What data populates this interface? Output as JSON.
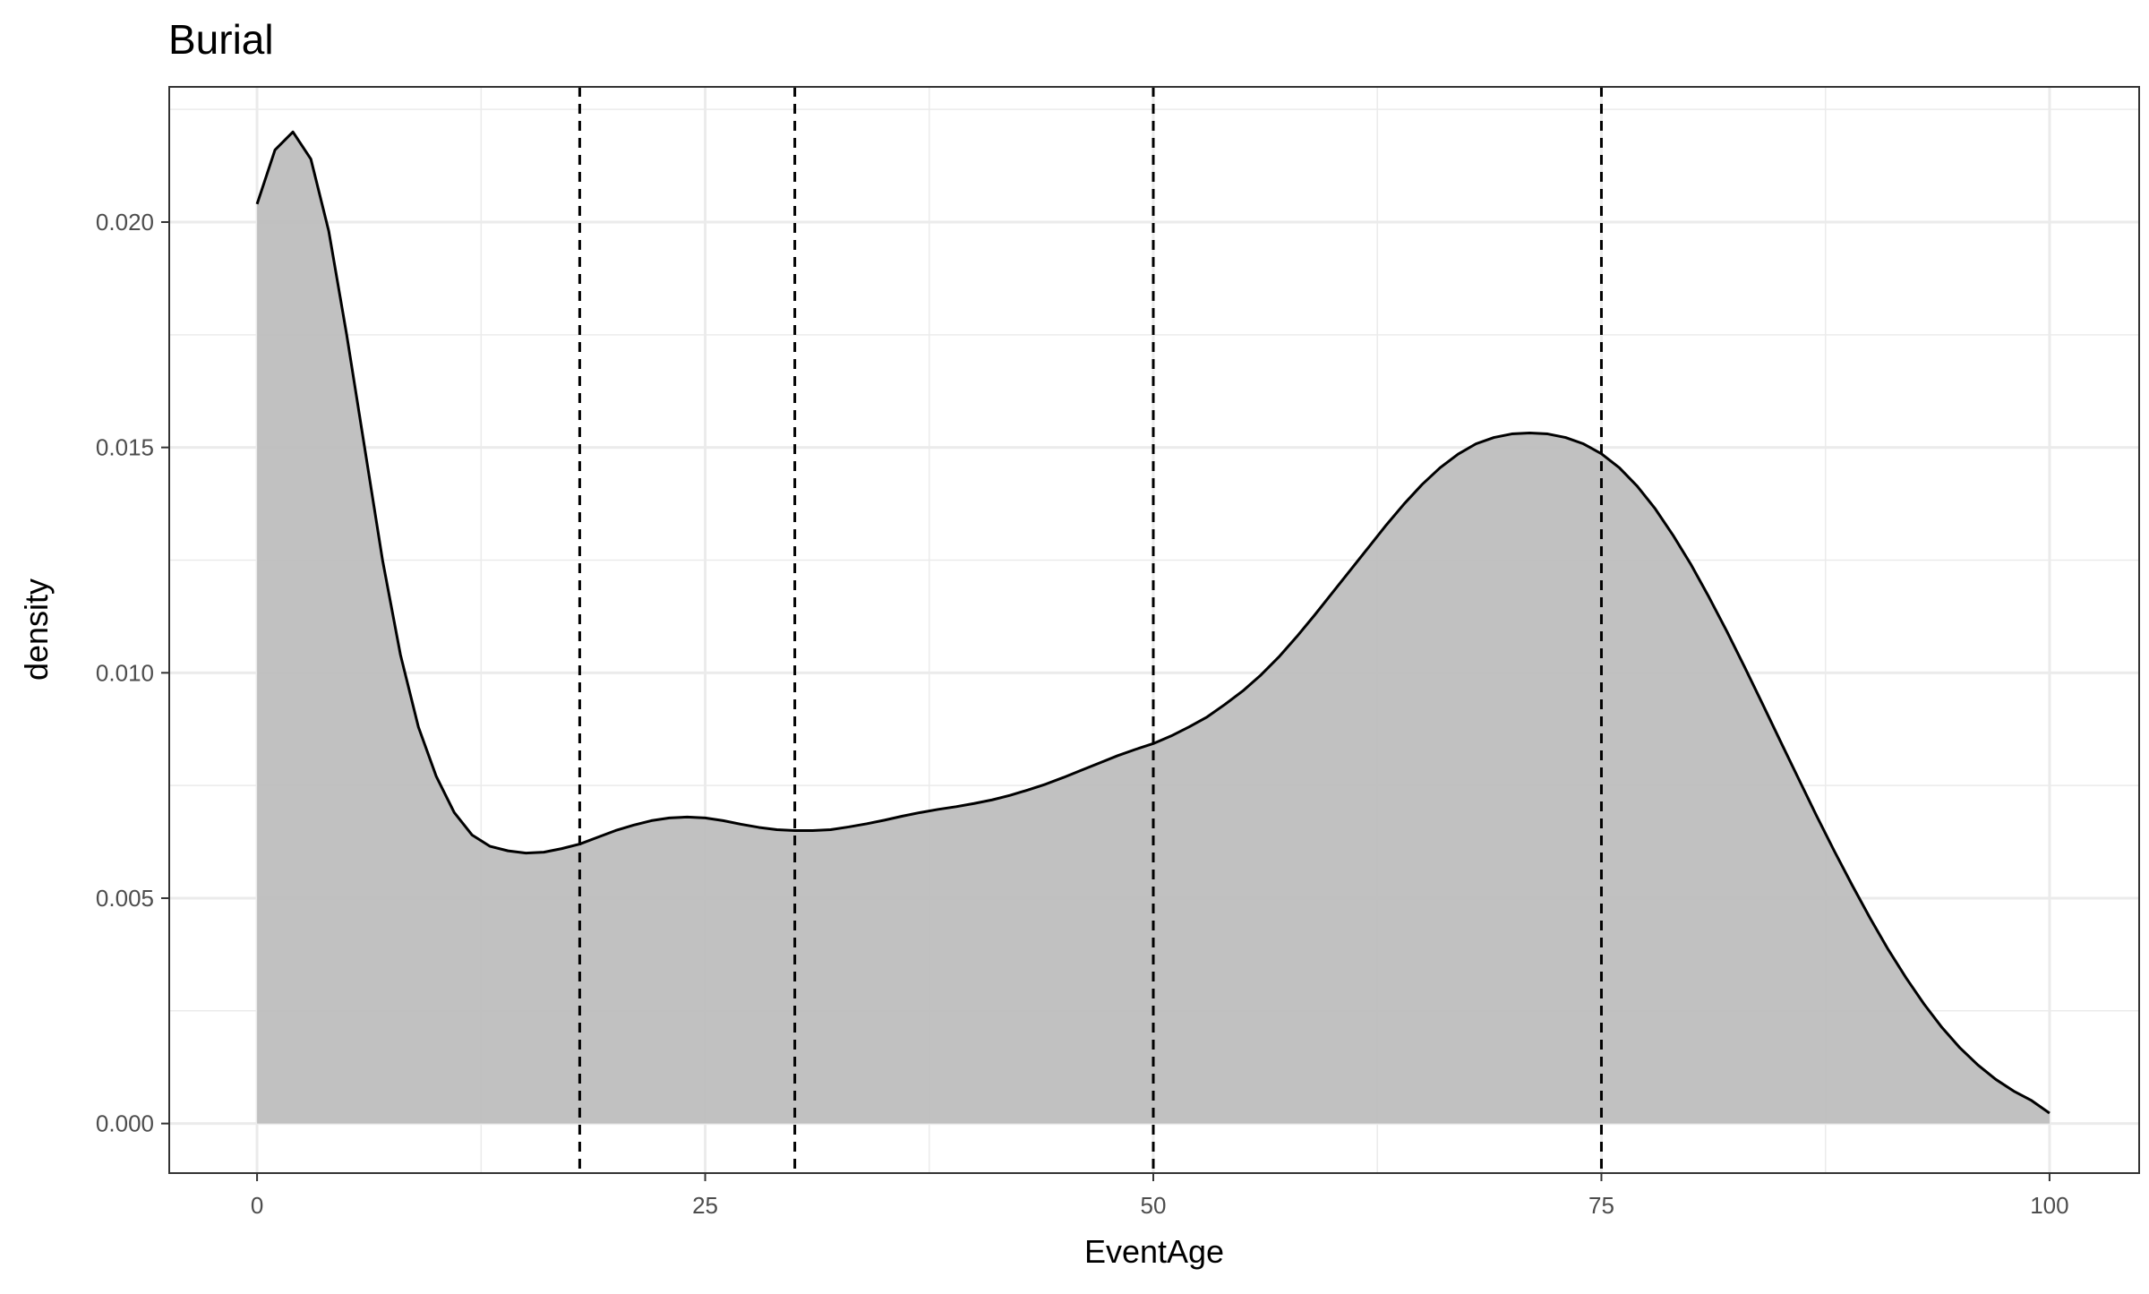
{
  "chart_data": {
    "type": "area",
    "title": "Burial",
    "xlabel": "EventAge",
    "ylabel": "density",
    "xlim": [
      -4.9,
      105
    ],
    "ylim": [
      -0.0011,
      0.023
    ],
    "x_ticks": [
      0,
      25,
      50,
      75,
      100
    ],
    "x_tick_labels": [
      "0",
      "25",
      "50",
      "75",
      "100"
    ],
    "y_ticks": [
      0.0,
      0.005,
      0.01,
      0.015,
      0.02
    ],
    "y_tick_labels": [
      "0.000",
      "0.005",
      "0.010",
      "0.015",
      "0.020"
    ],
    "x_minor_ticks": [
      12.5,
      37.5,
      62.5,
      87.5
    ],
    "y_minor_ticks": [
      0.0025,
      0.0075,
      0.0125,
      0.0175,
      0.0225
    ],
    "grid": true,
    "fill_color": "#bebebe",
    "line_color": "#000000",
    "series": [
      {
        "x": [
          0,
          1,
          2,
          3,
          4,
          5,
          6,
          7,
          8,
          9,
          10,
          11,
          12,
          13,
          14,
          15,
          16,
          17,
          18,
          19,
          20,
          21,
          22,
          23,
          24,
          25,
          26,
          27,
          28,
          29,
          30,
          31,
          32,
          33,
          34,
          35,
          36,
          37,
          38,
          39,
          40,
          41,
          42,
          43,
          44,
          45,
          46,
          47,
          48,
          49,
          50,
          51,
          52,
          53,
          54,
          55,
          56,
          57,
          58,
          59,
          60,
          61,
          62,
          63,
          64,
          65,
          66,
          67,
          68,
          69,
          70,
          71,
          72,
          73,
          74,
          75,
          76,
          77,
          78,
          79,
          80,
          81,
          82,
          83,
          84,
          85,
          86,
          87,
          88,
          89,
          90,
          91,
          92,
          93,
          94,
          95,
          96,
          97,
          98,
          99,
          100
        ],
        "y": [
          0.0204,
          0.0216,
          0.022,
          0.0214,
          0.0198,
          0.0175,
          0.015,
          0.0125,
          0.0104,
          0.0088,
          0.0077,
          0.0069,
          0.0064,
          0.00615,
          0.00605,
          0.006,
          0.00602,
          0.0061,
          0.0062,
          0.00635,
          0.0065,
          0.00662,
          0.00672,
          0.00678,
          0.0068,
          0.00678,
          0.00672,
          0.00664,
          0.00657,
          0.00652,
          0.0065,
          0.0065,
          0.00652,
          0.00658,
          0.00665,
          0.00673,
          0.00682,
          0.0069,
          0.00697,
          0.00703,
          0.0071,
          0.00718,
          0.00728,
          0.0074,
          0.00753,
          0.00768,
          0.00784,
          0.008,
          0.00816,
          0.0083,
          0.00843,
          0.0086,
          0.0088,
          0.00902,
          0.0093,
          0.0096,
          0.00995,
          0.01035,
          0.0108,
          0.01128,
          0.01178,
          0.01228,
          0.01278,
          0.01328,
          0.01375,
          0.01418,
          0.01455,
          0.01485,
          0.01508,
          0.01522,
          0.0153,
          0.01532,
          0.0153,
          0.01522,
          0.01508,
          0.01486,
          0.01455,
          0.01414,
          0.01364,
          0.01305,
          0.0124,
          0.01168,
          0.01092,
          0.01012,
          0.0093,
          0.00847,
          0.00765,
          0.00683,
          0.00604,
          0.00528,
          0.00455,
          0.00386,
          0.00323,
          0.00265,
          0.00213,
          0.00168,
          0.0013,
          0.00098,
          0.00072,
          0.00051,
          0.00023
        ]
      }
    ],
    "vlines": [
      18,
      30,
      50,
      75
    ]
  }
}
